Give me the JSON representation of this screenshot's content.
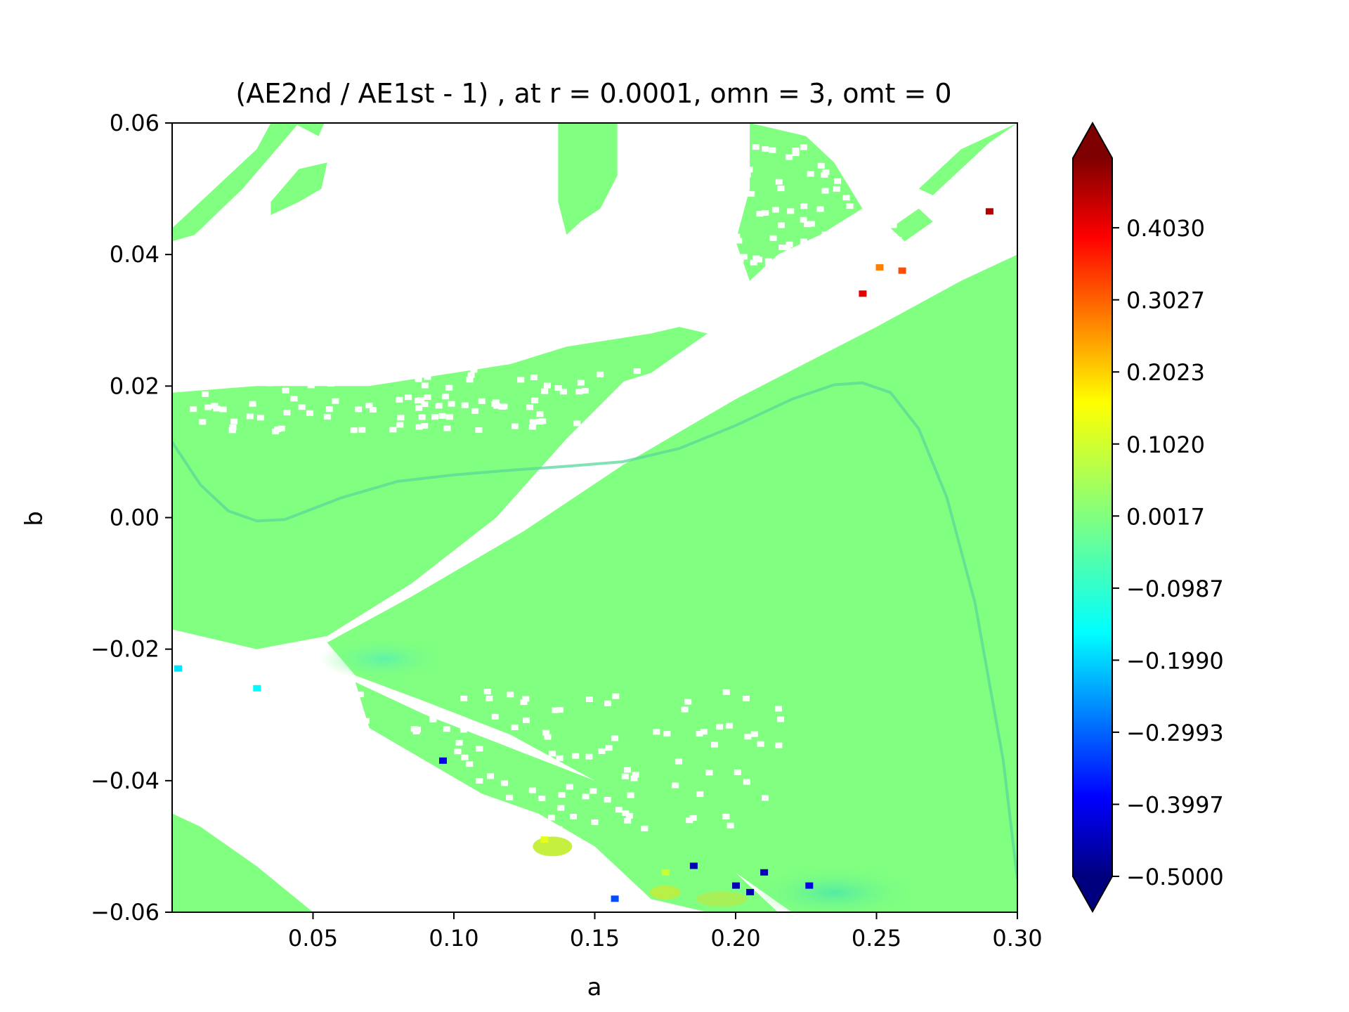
{
  "chart_data": {
    "type": "heatmap",
    "title": "(AE2nd / AE1st - 1) ,  at r = 0.0001, omn = 3, omt = 0",
    "xlabel": "a",
    "ylabel": "b",
    "xlim": [
      0.0,
      0.3
    ],
    "ylim": [
      -0.06,
      0.06
    ],
    "xticks": [
      "0.05",
      "0.10",
      "0.15",
      "0.20",
      "0.25",
      "0.30"
    ],
    "xtick_values": [
      0.05,
      0.1,
      0.15,
      0.2,
      0.25,
      0.3
    ],
    "yticks": [
      "−0.06",
      "−0.04",
      "−0.02",
      "0.00",
      "0.02",
      "0.04",
      "0.06"
    ],
    "ytick_values": [
      -0.06,
      -0.04,
      -0.02,
      0.0,
      0.02,
      0.04,
      0.06
    ],
    "grid": false,
    "colormap": "jet",
    "colorbar": {
      "vmin": -0.5,
      "vmax": 0.5,
      "extend": "both",
      "ticks": [
        "0.4030",
        "0.3027",
        "0.2023",
        "0.1020",
        "0.0017",
        "−0.0987",
        "−0.1990",
        "−0.2993",
        "−0.3997",
        "−0.5000"
      ],
      "tick_values": [
        0.403,
        0.3027,
        0.2023,
        0.102,
        0.0017,
        -0.0987,
        -0.199,
        -0.2993,
        -0.3997,
        -0.5
      ]
    },
    "dominant_value": 0.0,
    "colors": {
      "dominant": "#80ff80",
      "undefined_region": "#ffffff",
      "curve": "#5ad89a"
    },
    "curve": {
      "description_key": "overlay-line",
      "x": [
        0.0,
        0.01,
        0.02,
        0.03,
        0.04,
        0.06,
        0.08,
        0.1,
        0.12,
        0.14,
        0.16,
        0.18,
        0.2,
        0.22,
        0.235,
        0.245,
        0.255,
        0.265,
        0.275,
        0.285,
        0.295,
        0.3
      ],
      "y": [
        0.0115,
        0.005,
        0.001,
        -0.0005,
        -0.0003,
        0.003,
        0.0055,
        0.0065,
        0.0072,
        0.0078,
        0.0085,
        0.0105,
        0.014,
        0.018,
        0.0202,
        0.0205,
        0.019,
        0.0135,
        0.003,
        -0.013,
        -0.037,
        -0.055
      ]
    },
    "outliers": [
      {
        "a": 0.29,
        "b": 0.0465,
        "value": 0.45
      },
      {
        "a": 0.251,
        "b": 0.038,
        "value": 0.25
      },
      {
        "a": 0.259,
        "b": 0.0375,
        "value": 0.3
      },
      {
        "a": 0.245,
        "b": 0.034,
        "value": 0.4
      },
      {
        "a": 0.002,
        "b": -0.023,
        "value": -0.15
      },
      {
        "a": 0.03,
        "b": -0.026,
        "value": -0.13
      },
      {
        "a": 0.096,
        "b": -0.037,
        "value": -0.4
      },
      {
        "a": 0.157,
        "b": -0.058,
        "value": -0.3
      },
      {
        "a": 0.185,
        "b": -0.053,
        "value": -0.45
      },
      {
        "a": 0.2,
        "b": -0.056,
        "value": -0.45
      },
      {
        "a": 0.205,
        "b": -0.057,
        "value": -0.45
      },
      {
        "a": 0.21,
        "b": -0.054,
        "value": -0.45
      },
      {
        "a": 0.226,
        "b": -0.056,
        "value": -0.4
      },
      {
        "a": 0.132,
        "b": -0.049,
        "value": 0.1
      },
      {
        "a": 0.175,
        "b": -0.054,
        "value": 0.07
      }
    ]
  }
}
